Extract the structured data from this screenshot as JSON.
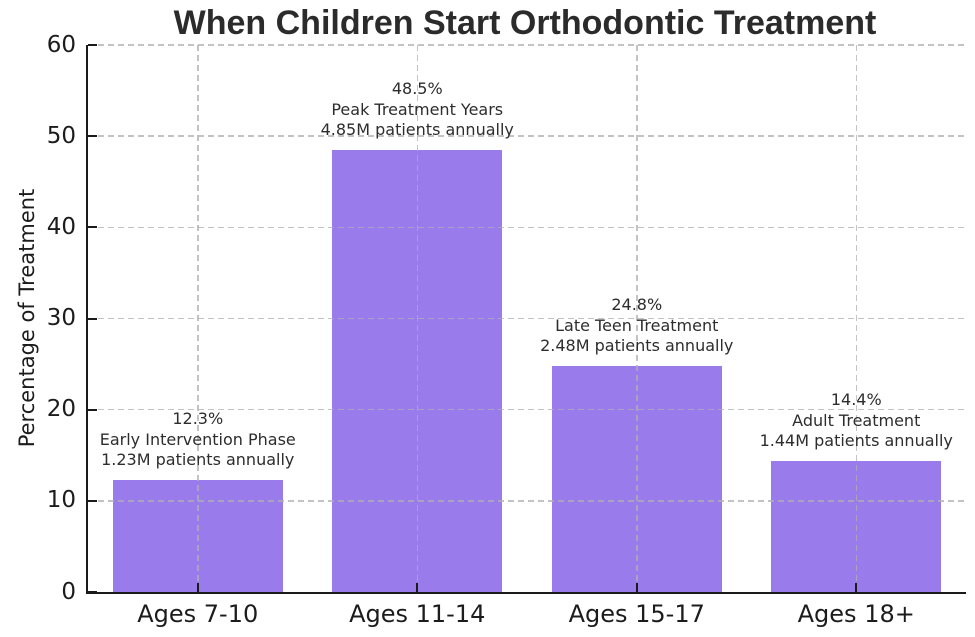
{
  "chart_data": {
    "type": "bar",
    "title": "When Children Start Orthodontic Treatment",
    "xlabel": "",
    "ylabel": "Percentage of Treatment",
    "ylim": [
      0,
      60
    ],
    "yticks": [
      0,
      10,
      20,
      30,
      40,
      50,
      60
    ],
    "grid": true,
    "grid_style": "dashed",
    "legend": "none",
    "bar_color": "#9a7bec",
    "categories": [
      "Ages 7-10",
      "Ages 11-14",
      "Ages 15-17",
      "Ages 18+"
    ],
    "values": [
      12.3,
      48.5,
      24.8,
      14.4
    ],
    "annotations": [
      {
        "pct": "12.3%",
        "label": "Early Intervention Phase",
        "patients": "1.23M patients annually"
      },
      {
        "pct": "48.5%",
        "label": "Peak Treatment Years",
        "patients": "4.85M patients annually"
      },
      {
        "pct": "24.8%",
        "label": "Late Teen Treatment",
        "patients": "2.48M patients annually"
      },
      {
        "pct": "14.4%",
        "label": "Adult Treatment",
        "patients": "1.44M patients annually"
      }
    ]
  }
}
